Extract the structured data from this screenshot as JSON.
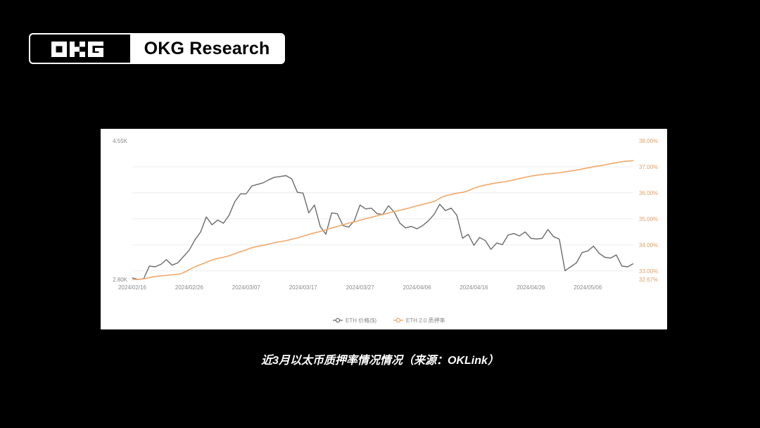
{
  "logo": {
    "brand": "OKG Research",
    "mark_text": "OKG"
  },
  "caption": "近3月以太币质押率情况情况（来源：OKLink）",
  "colors": {
    "eth_price": "#6b6b6b",
    "staking_rate": "#f0a86a",
    "background": "#000000",
    "card": "#ffffff"
  },
  "chart_data": {
    "type": "line",
    "x_tick_labels": [
      "2024/02/16",
      "2024/02/26",
      "2024/03/07",
      "2024/03/17",
      "2024/03/27",
      "2024/04/06",
      "2024/04/16",
      "2024/04/26",
      "2024/05/06"
    ],
    "y_left_tick_labels": [
      "4.55K",
      "2.80K"
    ],
    "y_right_tick_labels": [
      "38.00%",
      "37.00%",
      "36.00%",
      "35.00%",
      "34.00%",
      "33.00%",
      "32.67%"
    ],
    "y_left_ticks": [
      4550,
      2800
    ],
    "y_right_ticks": [
      38.0,
      37.0,
      36.0,
      35.0,
      34.0,
      33.0,
      32.67
    ],
    "ylim_left": [
      2800,
      4550
    ],
    "ylim_right": [
      32.67,
      38.0
    ],
    "grid": true,
    "legend_position": "bottom-center",
    "series": [
      {
        "name": "ETH 价格($)",
        "axis": "left",
        "values": [
          2820,
          2800,
          2810,
          2970,
          2960,
          2990,
          3050,
          2980,
          3010,
          3090,
          3170,
          3300,
          3400,
          3590,
          3490,
          3550,
          3510,
          3610,
          3780,
          3880,
          3880,
          3980,
          4000,
          4020,
          4060,
          4090,
          4100,
          4110,
          4070,
          3900,
          3890,
          3640,
          3740,
          3470,
          3370,
          3640,
          3630,
          3480,
          3460,
          3540,
          3740,
          3690,
          3700,
          3630,
          3620,
          3730,
          3650,
          3510,
          3450,
          3470,
          3440,
          3480,
          3540,
          3620,
          3750,
          3670,
          3700,
          3610,
          3320,
          3370,
          3230,
          3330,
          3290,
          3180,
          3260,
          3240,
          3360,
          3380,
          3350,
          3400,
          3320,
          3310,
          3320,
          3430,
          3340,
          3310,
          2910,
          2960,
          3010,
          3140,
          3160,
          3220,
          3130,
          3080,
          3070,
          3110,
          2970,
          2960,
          3000
        ]
      },
      {
        "name": "ETH 2.0 质押率",
        "axis": "right",
        "values": [
          32.67,
          32.67,
          32.69,
          32.73,
          32.78,
          32.8,
          32.82,
          32.84,
          32.86,
          32.88,
          32.97,
          33.08,
          33.18,
          33.26,
          33.34,
          33.42,
          33.48,
          33.52,
          33.57,
          33.64,
          33.72,
          33.78,
          33.86,
          33.92,
          33.96,
          34.0,
          34.05,
          34.1,
          34.13,
          34.17,
          34.22,
          34.27,
          34.33,
          34.39,
          34.45,
          34.5,
          34.56,
          34.62,
          34.68,
          34.74,
          34.8,
          34.86,
          34.9,
          34.96,
          35.02,
          35.07,
          35.12,
          35.17,
          35.22,
          35.27,
          35.32,
          35.37,
          35.42,
          35.48,
          35.53,
          35.58,
          35.63,
          35.7,
          35.83,
          35.9,
          35.95,
          35.99,
          36.02,
          36.08,
          36.17,
          36.24,
          36.29,
          36.33,
          36.37,
          36.4,
          36.43,
          36.47,
          36.52,
          36.56,
          36.61,
          36.65,
          36.68,
          36.71,
          36.73,
          36.75,
          36.77,
          36.8,
          36.83,
          36.86,
          36.9,
          36.94,
          36.98,
          37.02,
          37.05,
          37.09,
          37.13,
          37.17,
          37.2,
          37.22,
          37.24
        ]
      }
    ]
  }
}
